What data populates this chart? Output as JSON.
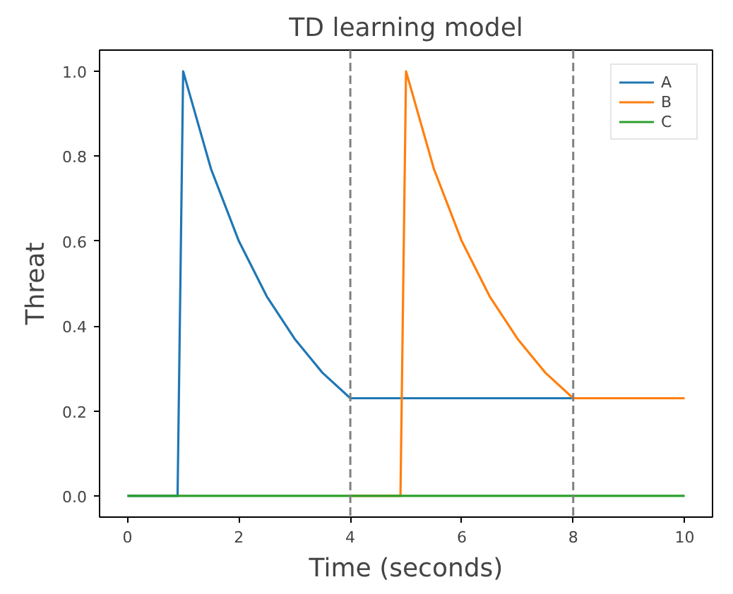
{
  "chart_data": {
    "type": "line",
    "title": "TD learning model",
    "xlabel": "Time (seconds)",
    "ylabel": "Threat",
    "xlim": [
      -0.5,
      10.5
    ],
    "ylim": [
      -0.05,
      1.05
    ],
    "xticks": [
      0,
      2,
      4,
      6,
      8,
      10
    ],
    "yticks": [
      {
        "value": 0,
        "label": "0.0"
      },
      {
        "value": 0.2,
        "label": "0.2"
      },
      {
        "value": 0.4,
        "label": "0.4"
      },
      {
        "value": 0.6,
        "label": "0.6"
      },
      {
        "value": 0.8,
        "label": "0.8"
      },
      {
        "value": 1.0,
        "label": "1.0"
      }
    ],
    "series": [
      {
        "name": "A",
        "color": "#1f77b4",
        "x": [
          0,
          0.9,
          1.0,
          1.5,
          2.0,
          2.5,
          3.0,
          3.5,
          4.0,
          8.0
        ],
        "values": [
          0,
          0,
          1.0,
          0.77,
          0.6,
          0.47,
          0.37,
          0.29,
          0.23,
          0.23
        ]
      },
      {
        "name": "B",
        "color": "#ff7f0e",
        "x": [
          4.0,
          4.9,
          5.0,
          5.5,
          6.0,
          6.5,
          7.0,
          7.5,
          8.0,
          10.0
        ],
        "values": [
          0,
          0,
          1.0,
          0.77,
          0.6,
          0.47,
          0.37,
          0.29,
          0.23,
          0.23
        ]
      },
      {
        "name": "C",
        "color": "#2ca02c",
        "x": [
          0,
          10
        ],
        "values": [
          0,
          0
        ]
      }
    ],
    "ref_lines": [
      {
        "axis": "x",
        "value": 4,
        "color": "#808080",
        "line_style": "dashed"
      },
      {
        "axis": "x",
        "value": 8,
        "color": "#808080",
        "line_style": "dashed"
      }
    ],
    "legend": "top right",
    "grid": false
  }
}
